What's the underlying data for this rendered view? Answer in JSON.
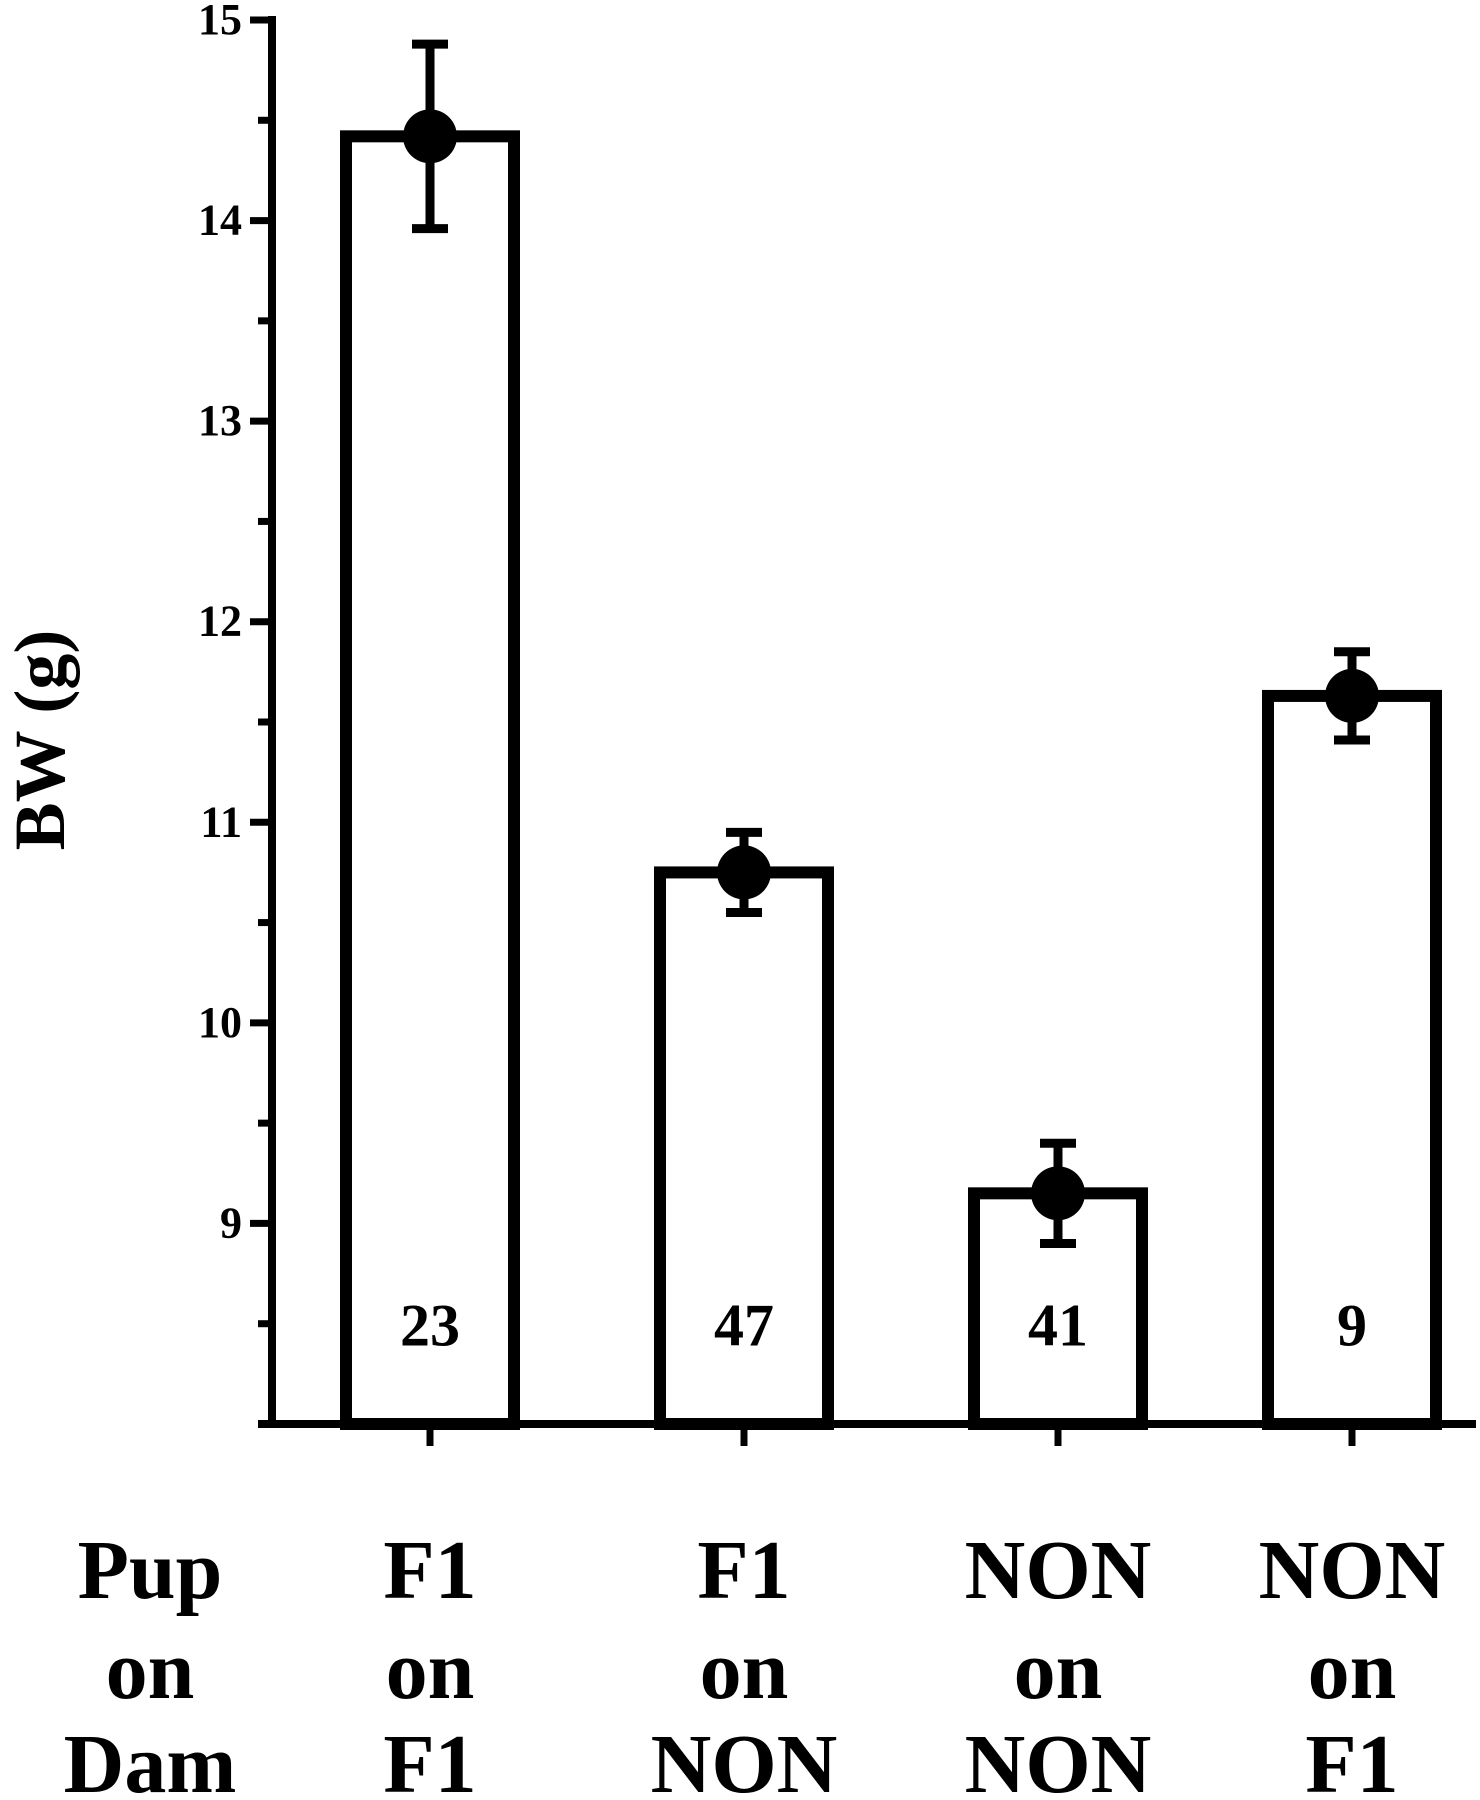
{
  "chart_data": {
    "type": "bar",
    "title": "",
    "xlabel": "",
    "ylabel": "BW (g)",
    "ylim": [
      8,
      15
    ],
    "yticks": [
      9,
      10,
      11,
      12,
      13,
      14,
      15
    ],
    "row_labels": [
      "Pup",
      "on",
      "Dam"
    ],
    "categories": [
      {
        "pup": "F1",
        "on": "on",
        "dam": "F1"
      },
      {
        "pup": "F1",
        "on": "on",
        "dam": "NON"
      },
      {
        "pup": "NON",
        "on": "on",
        "dam": "NON"
      },
      {
        "pup": "NON",
        "on": "on",
        "dam": "F1"
      }
    ],
    "values": [
      14.42,
      10.75,
      9.15,
      11.63
    ],
    "error": [
      0.46,
      0.2,
      0.25,
      0.22
    ],
    "n": [
      "23",
      "47",
      "41",
      "9"
    ],
    "grid": false,
    "legend": "none",
    "colors": {
      "bar_fill": "#ffffff",
      "bar_edge": "#000000",
      "marker": "#000000"
    }
  }
}
